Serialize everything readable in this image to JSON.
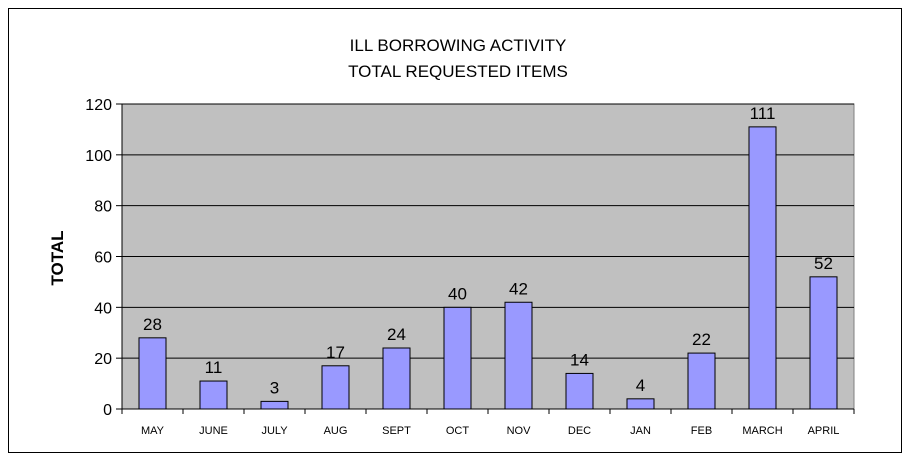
{
  "chart_data": {
    "type": "bar",
    "title_lines": [
      "ILL BORROWING ACTIVITY",
      "TOTAL REQUESTED ITEMS"
    ],
    "xlabel": "",
    "ylabel": "TOTAL",
    "categories": [
      "MAY",
      "JUNE",
      "JULY",
      "AUG",
      "SEPT",
      "OCT",
      "NOV",
      "DEC",
      "JAN",
      "FEB",
      "MARCH",
      "APRIL"
    ],
    "values": [
      28,
      11,
      3,
      17,
      24,
      40,
      42,
      14,
      4,
      22,
      111,
      52
    ],
    "ylim": [
      0,
      120
    ],
    "yticks": [
      0,
      20,
      40,
      60,
      80,
      100,
      120
    ],
    "grid": true,
    "legend": "none",
    "colors": {
      "plot_background": "#C0C0C0",
      "bar_fill": "#9999FF",
      "bar_stroke": "#000000",
      "gridline": "#000000"
    }
  }
}
